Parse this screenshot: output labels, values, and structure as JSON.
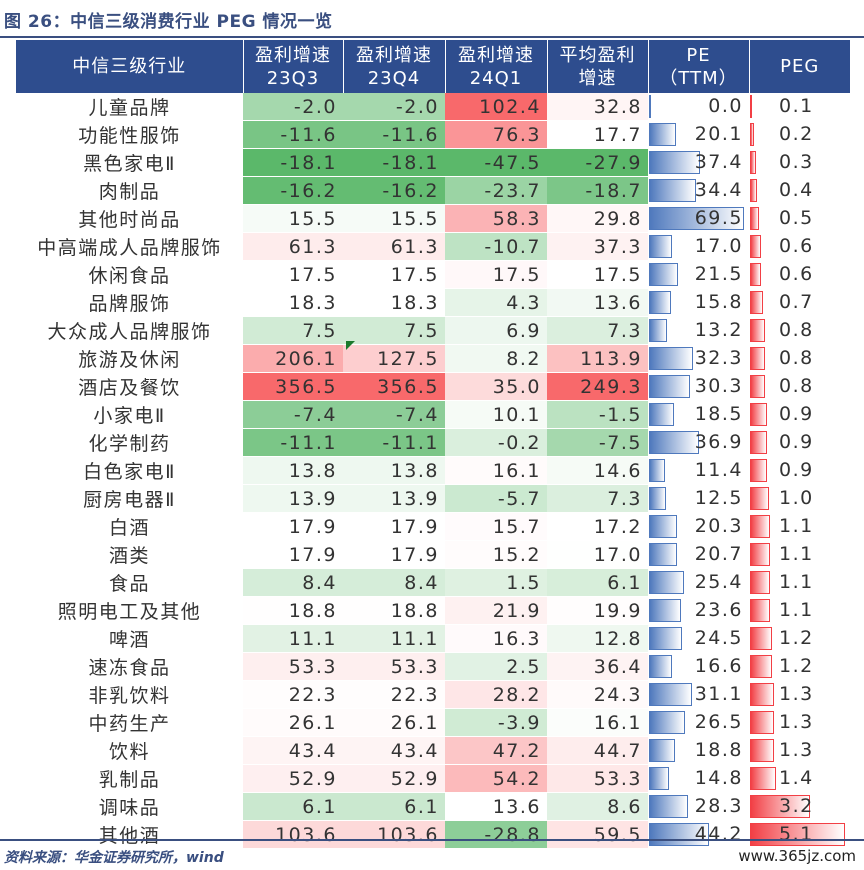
{
  "figure": {
    "title": "图 26：中信三级消费行业 PEG 情况一览",
    "source": "资料来源：华金证券研究所，wind",
    "watermark": "www.365jz.com"
  },
  "chart_data": {
    "type": "table",
    "columns": [
      "中信三级行业",
      "盈利增速 23Q3",
      "盈利增速 23Q4",
      "盈利增速 24Q1",
      "平均盈利增速",
      "PE（TTM）",
      "PEG"
    ],
    "header_lines": [
      [
        "中信三级行业"
      ],
      [
        "盈利增速",
        "23Q3"
      ],
      [
        "盈利增速",
        "23Q4"
      ],
      [
        "盈利增速",
        "24Q1"
      ],
      [
        "平均盈利",
        "增速"
      ],
      [
        "PE",
        "（TTM）"
      ],
      [
        "PEG"
      ]
    ],
    "rows": [
      {
        "name": "儿童品牌",
        "q3": "-2.0",
        "q4": "-2.0",
        "q1": "102.4",
        "avg": "32.8",
        "pe": "0.0",
        "peg": "0.1"
      },
      {
        "name": "功能性服饰",
        "q3": "-11.6",
        "q4": "-11.6",
        "q1": "76.3",
        "avg": "17.7",
        "pe": "20.1",
        "peg": "0.2"
      },
      {
        "name": "黑色家电Ⅱ",
        "q3": "-18.1",
        "q4": "-18.1",
        "q1": "-47.5",
        "avg": "-27.9",
        "pe": "37.4",
        "peg": "0.3"
      },
      {
        "name": "肉制品",
        "q3": "-16.2",
        "q4": "-16.2",
        "q1": "-23.7",
        "avg": "-18.7",
        "pe": "34.4",
        "peg": "0.4"
      },
      {
        "name": "其他时尚品",
        "q3": "15.5",
        "q4": "15.5",
        "q1": "58.3",
        "avg": "29.8",
        "pe": "69.5",
        "peg": "0.5"
      },
      {
        "name": "中高端成人品牌服饰",
        "q3": "61.3",
        "q4": "61.3",
        "q1": "-10.7",
        "avg": "37.3",
        "pe": "17.0",
        "peg": "0.6"
      },
      {
        "name": "休闲食品",
        "q3": "17.5",
        "q4": "17.5",
        "q1": "17.5",
        "avg": "17.5",
        "pe": "21.5",
        "peg": "0.6"
      },
      {
        "name": "品牌服饰",
        "q3": "18.3",
        "q4": "18.3",
        "q1": "4.3",
        "avg": "13.6",
        "pe": "15.8",
        "peg": "0.7"
      },
      {
        "name": "大众成人品牌服饰",
        "q3": "7.5",
        "q4": "7.5",
        "q1": "6.9",
        "avg": "7.3",
        "pe": "13.2",
        "peg": "0.8"
      },
      {
        "name": "旅游及休闲",
        "q3": "206.1",
        "q4": "127.5",
        "q1": "8.2",
        "avg": "113.9",
        "pe": "32.3",
        "peg": "0.8"
      },
      {
        "name": "酒店及餐饮",
        "q3": "356.5",
        "q4": "356.5",
        "q1": "35.0",
        "avg": "249.3",
        "pe": "30.3",
        "peg": "0.8"
      },
      {
        "name": "小家电Ⅱ",
        "q3": "-7.4",
        "q4": "-7.4",
        "q1": "10.1",
        "avg": "-1.5",
        "pe": "18.5",
        "peg": "0.9"
      },
      {
        "name": "化学制药",
        "q3": "-11.1",
        "q4": "-11.1",
        "q1": "-0.2",
        "avg": "-7.5",
        "pe": "36.9",
        "peg": "0.9"
      },
      {
        "name": "白色家电Ⅱ",
        "q3": "13.8",
        "q4": "13.8",
        "q1": "16.1",
        "avg": "14.6",
        "pe": "11.4",
        "peg": "0.9"
      },
      {
        "name": "厨房电器Ⅱ",
        "q3": "13.9",
        "q4": "13.9",
        "q1": "-5.7",
        "avg": "7.3",
        "pe": "12.5",
        "peg": "1.0"
      },
      {
        "name": "白酒",
        "q3": "17.9",
        "q4": "17.9",
        "q1": "15.7",
        "avg": "17.2",
        "pe": "20.3",
        "peg": "1.1"
      },
      {
        "name": "酒类",
        "q3": "17.9",
        "q4": "17.9",
        "q1": "15.2",
        "avg": "17.0",
        "pe": "20.7",
        "peg": "1.1"
      },
      {
        "name": "食品",
        "q3": "8.4",
        "q4": "8.4",
        "q1": "1.5",
        "avg": "6.1",
        "pe": "25.4",
        "peg": "1.1"
      },
      {
        "name": "照明电工及其他",
        "q3": "18.8",
        "q4": "18.8",
        "q1": "21.9",
        "avg": "19.9",
        "pe": "23.6",
        "peg": "1.1"
      },
      {
        "name": "啤酒",
        "q3": "11.1",
        "q4": "11.1",
        "q1": "16.3",
        "avg": "12.8",
        "pe": "24.5",
        "peg": "1.2"
      },
      {
        "name": "速冻食品",
        "q3": "53.3",
        "q4": "53.3",
        "q1": "2.5",
        "avg": "36.4",
        "pe": "16.6",
        "peg": "1.2"
      },
      {
        "name": "非乳饮料",
        "q3": "22.3",
        "q4": "22.3",
        "q1": "28.2",
        "avg": "24.3",
        "pe": "31.1",
        "peg": "1.3"
      },
      {
        "name": "中药生产",
        "q3": "26.1",
        "q4": "26.1",
        "q1": "-3.9",
        "avg": "16.1",
        "pe": "26.5",
        "peg": "1.3"
      },
      {
        "name": "饮料",
        "q3": "43.4",
        "q4": "43.4",
        "q1": "47.2",
        "avg": "44.7",
        "pe": "18.8",
        "peg": "1.3"
      },
      {
        "name": "乳制品",
        "q3": "52.9",
        "q4": "52.9",
        "q1": "54.2",
        "avg": "53.3",
        "pe": "14.8",
        "peg": "1.4"
      },
      {
        "name": "调味品",
        "q3": "6.1",
        "q4": "6.1",
        "q1": "13.6",
        "avg": "8.6",
        "pe": "28.3",
        "peg": "3.2"
      },
      {
        "name": "其他酒",
        "q3": "103.6",
        "q4": "103.6",
        "q1": "-28.8",
        "avg": "59.5",
        "pe": "44.2",
        "peg": "5.1"
      }
    ],
    "color_scale": {
      "negative": "#5bb86a",
      "middle": "#ffffff",
      "positive": "#f8696b"
    },
    "pe_bar_color": "#4f79bd",
    "peg_bar_color": "#f23f45",
    "header_bg": "#2e4d8e"
  }
}
